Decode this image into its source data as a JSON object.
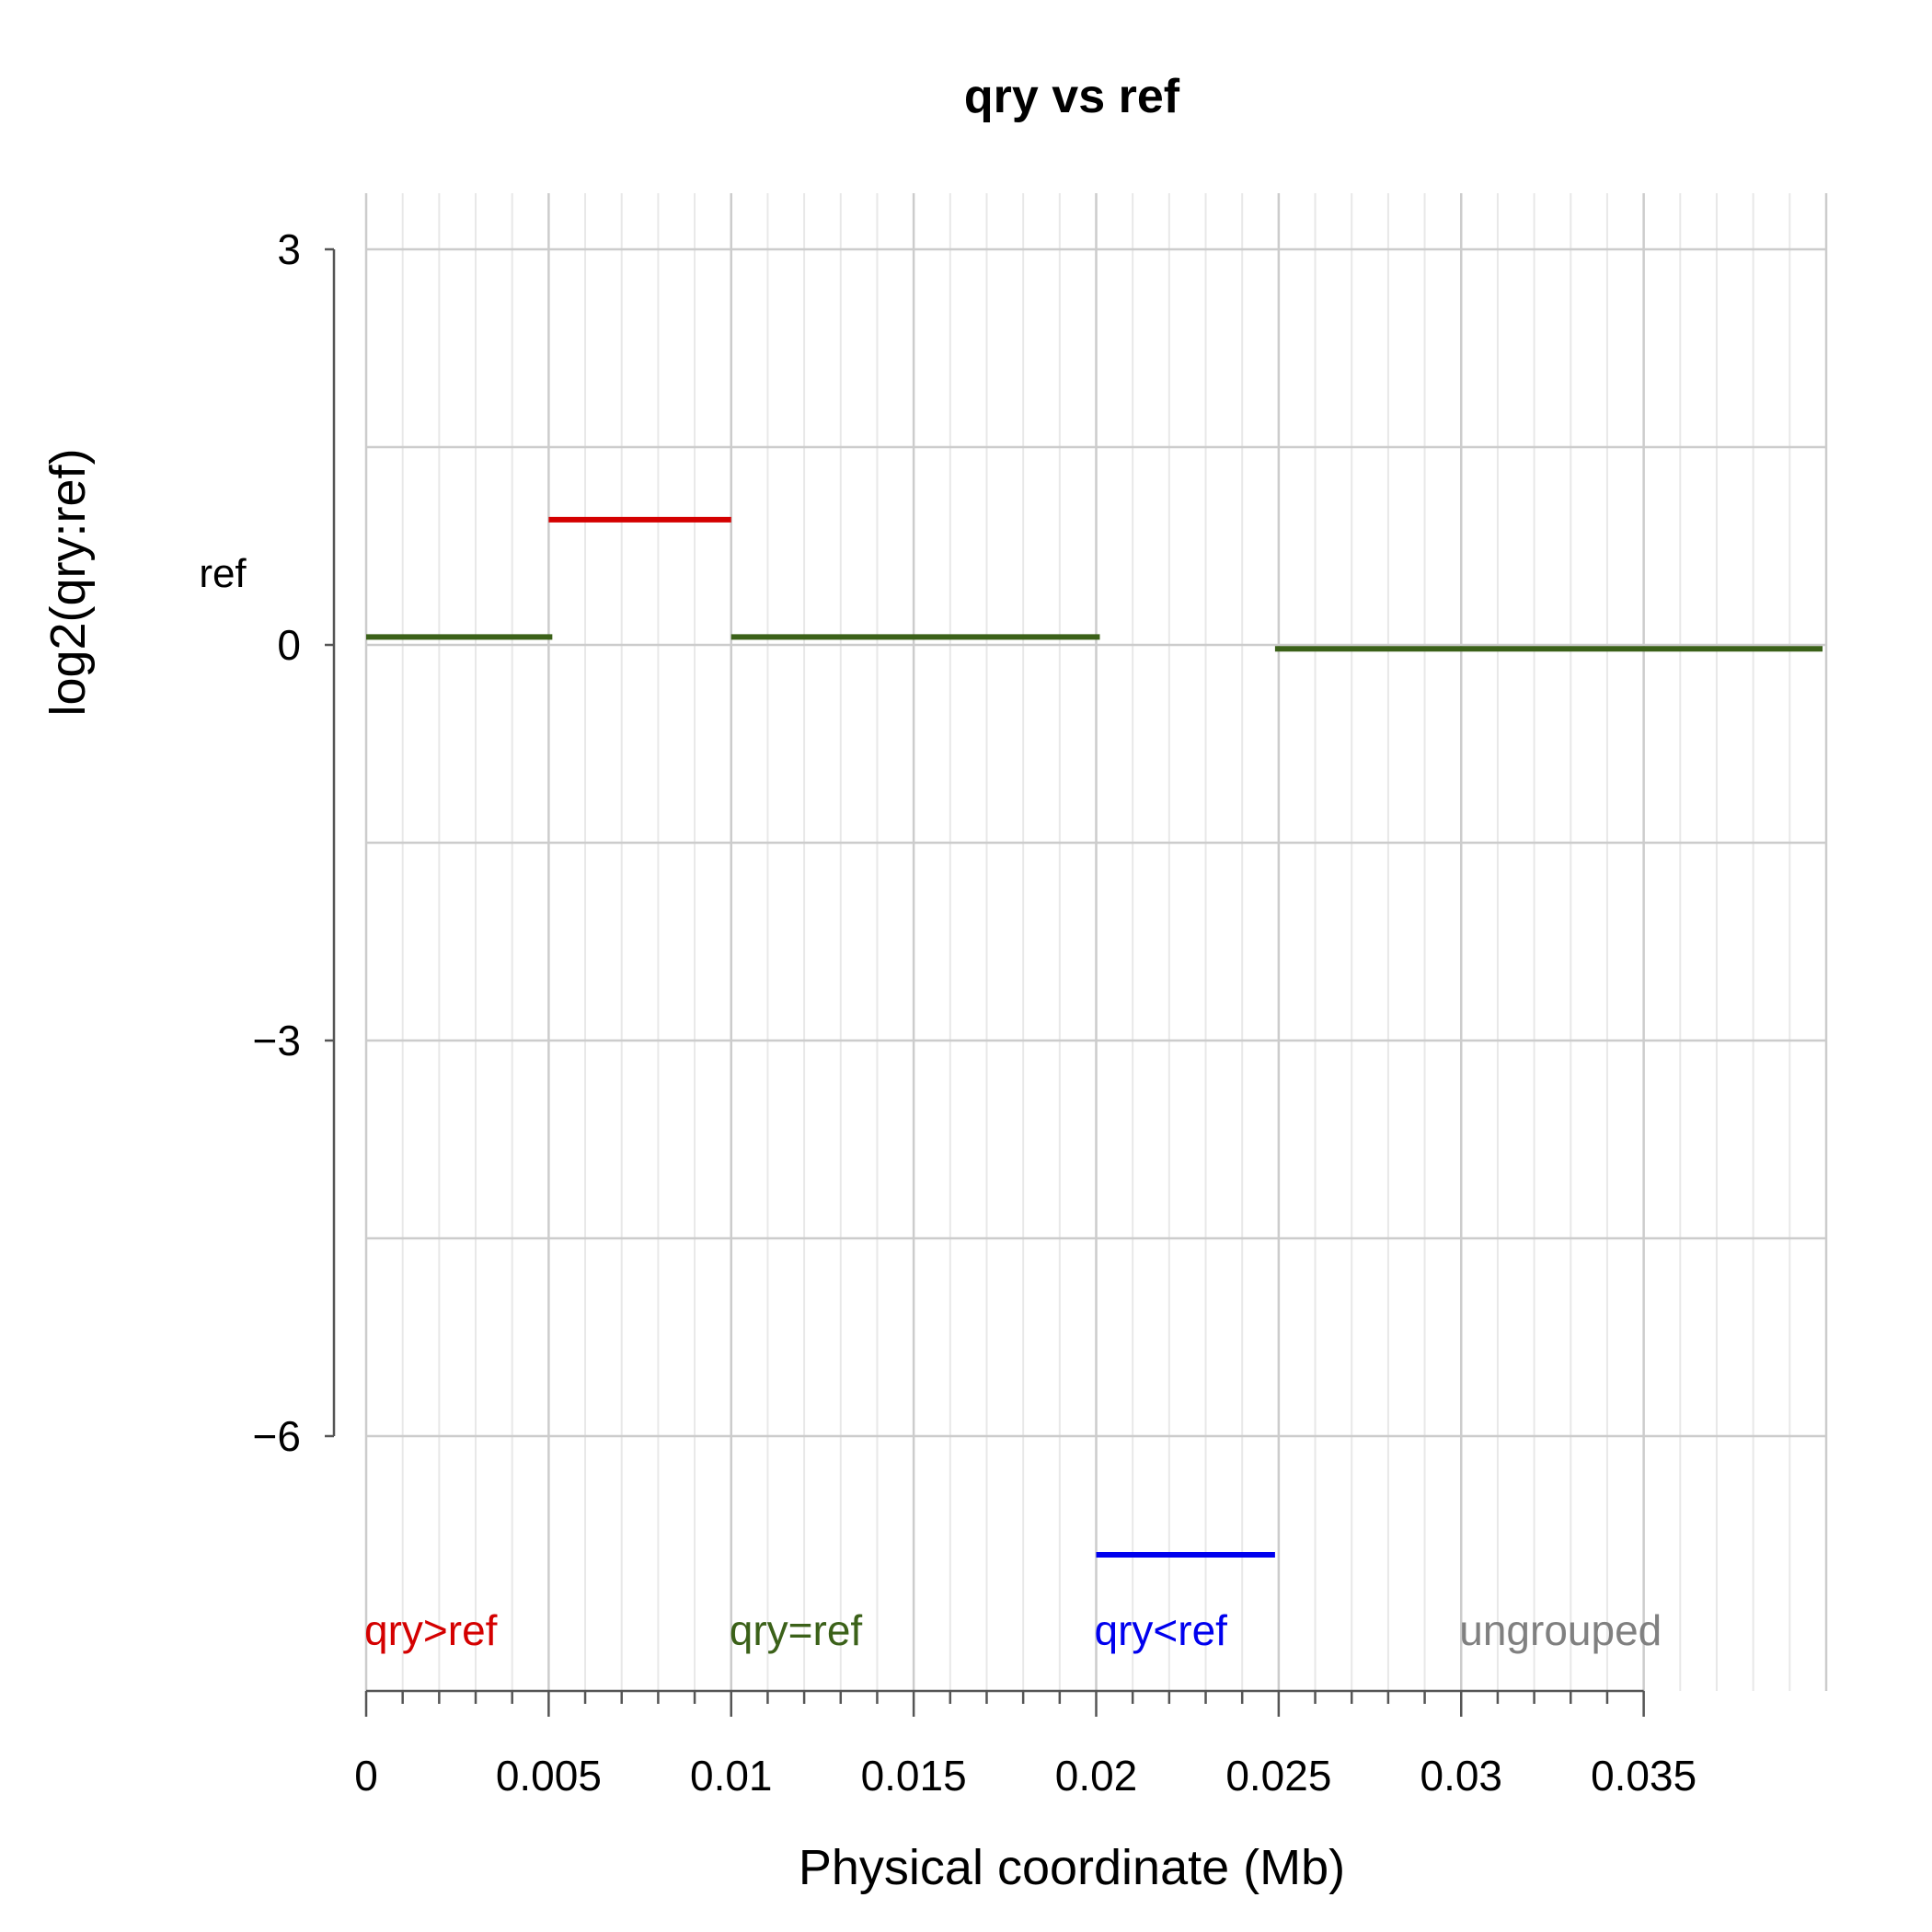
{
  "chart_data": {
    "type": "line",
    "title": "qry vs ref",
    "xlabel": "Physical coordinate (Mb)",
    "ylabel": "log2(qry:ref)",
    "ref_label": "ref",
    "xlim": [
      0,
      0.04
    ],
    "ylim": [
      -8,
      3.4
    ],
    "x_ticks": [
      0,
      0.005,
      0.01,
      0.015,
      0.02,
      0.025,
      0.03,
      0.035
    ],
    "x_tick_labels": [
      "0",
      "0.005",
      "0.01",
      "0.015",
      "0.02",
      "0.025",
      "0.03",
      "0.035"
    ],
    "y_ticks": [
      3,
      0,
      -3,
      -6
    ],
    "y_tick_labels": [
      "3",
      "0",
      "−3",
      "−6"
    ],
    "grid": true,
    "segments": [
      {
        "x_start": 0,
        "x_end": 0.0051,
        "y": 0.06,
        "group": "qry=ref",
        "color": "#3b6119"
      },
      {
        "x_start": 0.005,
        "x_end": 0.01,
        "y": 0.95,
        "group": "qry>ref",
        "color": "#d40000"
      },
      {
        "x_start": 0.01,
        "x_end": 0.0201,
        "y": 0.06,
        "group": "qry=ref",
        "color": "#3b6119"
      },
      {
        "x_start": 0.02,
        "x_end": 0.0249,
        "y": -6.9,
        "group": "qry<ref",
        "color": "#0000ee"
      },
      {
        "x_start": 0.0249,
        "x_end": 0.0399,
        "y": -0.03,
        "group": "qry=ref",
        "color": "#3b6119"
      }
    ],
    "group_labels": [
      {
        "text": "qry>ref",
        "x": 0,
        "color": "#d40000"
      },
      {
        "text": "qry=ref",
        "x": 0.01,
        "color": "#3b6119"
      },
      {
        "text": "qry<ref",
        "x": 0.02,
        "color": "#0000ee"
      },
      {
        "text": "ungrouped",
        "x": 0.03,
        "color": "#808080"
      }
    ],
    "colors": {
      "grid_major": "#cccccc",
      "grid_minor": "#e8e8e8",
      "axis": "#555555"
    }
  }
}
